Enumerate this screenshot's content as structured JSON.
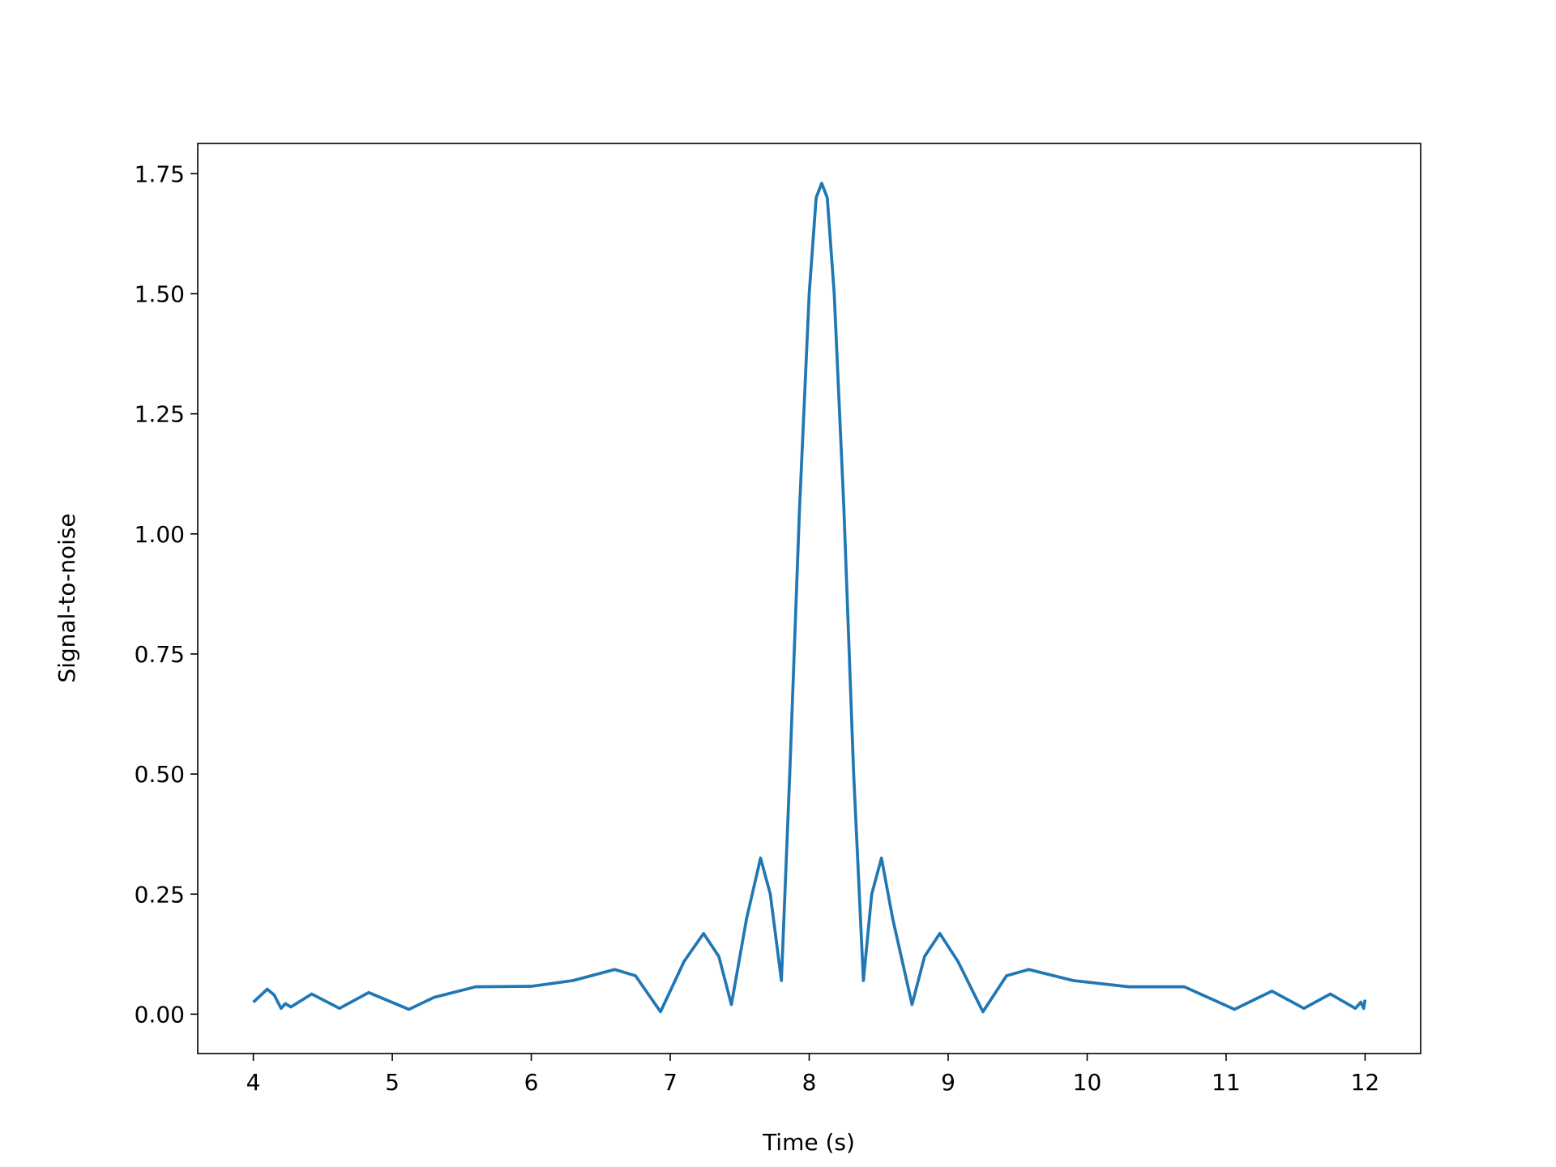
{
  "chart_data": {
    "type": "line",
    "xlabel": "Time (s)",
    "ylabel": "Signal-to-noise",
    "x": [
      4.0,
      4.1,
      4.15,
      4.2,
      4.23,
      4.27,
      4.42,
      4.62,
      4.83,
      5.12,
      5.3,
      5.6,
      6.0,
      6.3,
      6.6,
      6.75,
      6.93,
      7.1,
      7.24,
      7.35,
      7.44,
      7.55,
      7.65,
      7.72,
      7.8,
      7.86,
      7.93,
      8.0,
      8.05,
      8.09,
      8.13,
      8.18,
      8.25,
      8.32,
      8.39,
      8.45,
      8.52,
      8.6,
      8.74,
      8.83,
      8.94,
      9.07,
      9.25,
      9.42,
      9.58,
      9.9,
      10.3,
      10.7,
      11.06,
      11.33,
      11.56,
      11.75,
      11.93,
      11.97,
      11.99,
      12.0
    ],
    "series": [
      {
        "name": "Signal-to-noise",
        "color": "#1f77b4",
        "values": [
          0.025,
          0.052,
          0.04,
          0.012,
          0.022,
          0.015,
          0.042,
          0.012,
          0.045,
          0.01,
          0.035,
          0.057,
          0.058,
          0.07,
          0.093,
          0.08,
          0.005,
          0.11,
          0.168,
          0.12,
          0.02,
          0.2,
          0.325,
          0.25,
          0.07,
          0.5,
          1.05,
          1.5,
          1.7,
          1.73,
          1.7,
          1.5,
          1.05,
          0.5,
          0.07,
          0.25,
          0.325,
          0.2,
          0.02,
          0.12,
          0.168,
          0.11,
          0.005,
          0.08,
          0.093,
          0.07,
          0.057,
          0.057,
          0.01,
          0.048,
          0.012,
          0.042,
          0.012,
          0.025,
          0.012,
          0.03
        ]
      }
    ],
    "xlim": [
      3.6,
      12.4
    ],
    "ylim": [
      -0.082,
      1.813
    ],
    "xticks": [
      4,
      5,
      6,
      7,
      8,
      9,
      10,
      11,
      12
    ],
    "yticks": [
      {
        "value": 0,
        "label": "0.00"
      },
      0.25,
      {
        "value": 0.5,
        "label": "0.50"
      },
      0.75,
      {
        "value": 1,
        "label": "1.00"
      },
      1.25,
      {
        "value": 1.5,
        "label": "1.50"
      },
      1.75
    ],
    "grid": false
  }
}
